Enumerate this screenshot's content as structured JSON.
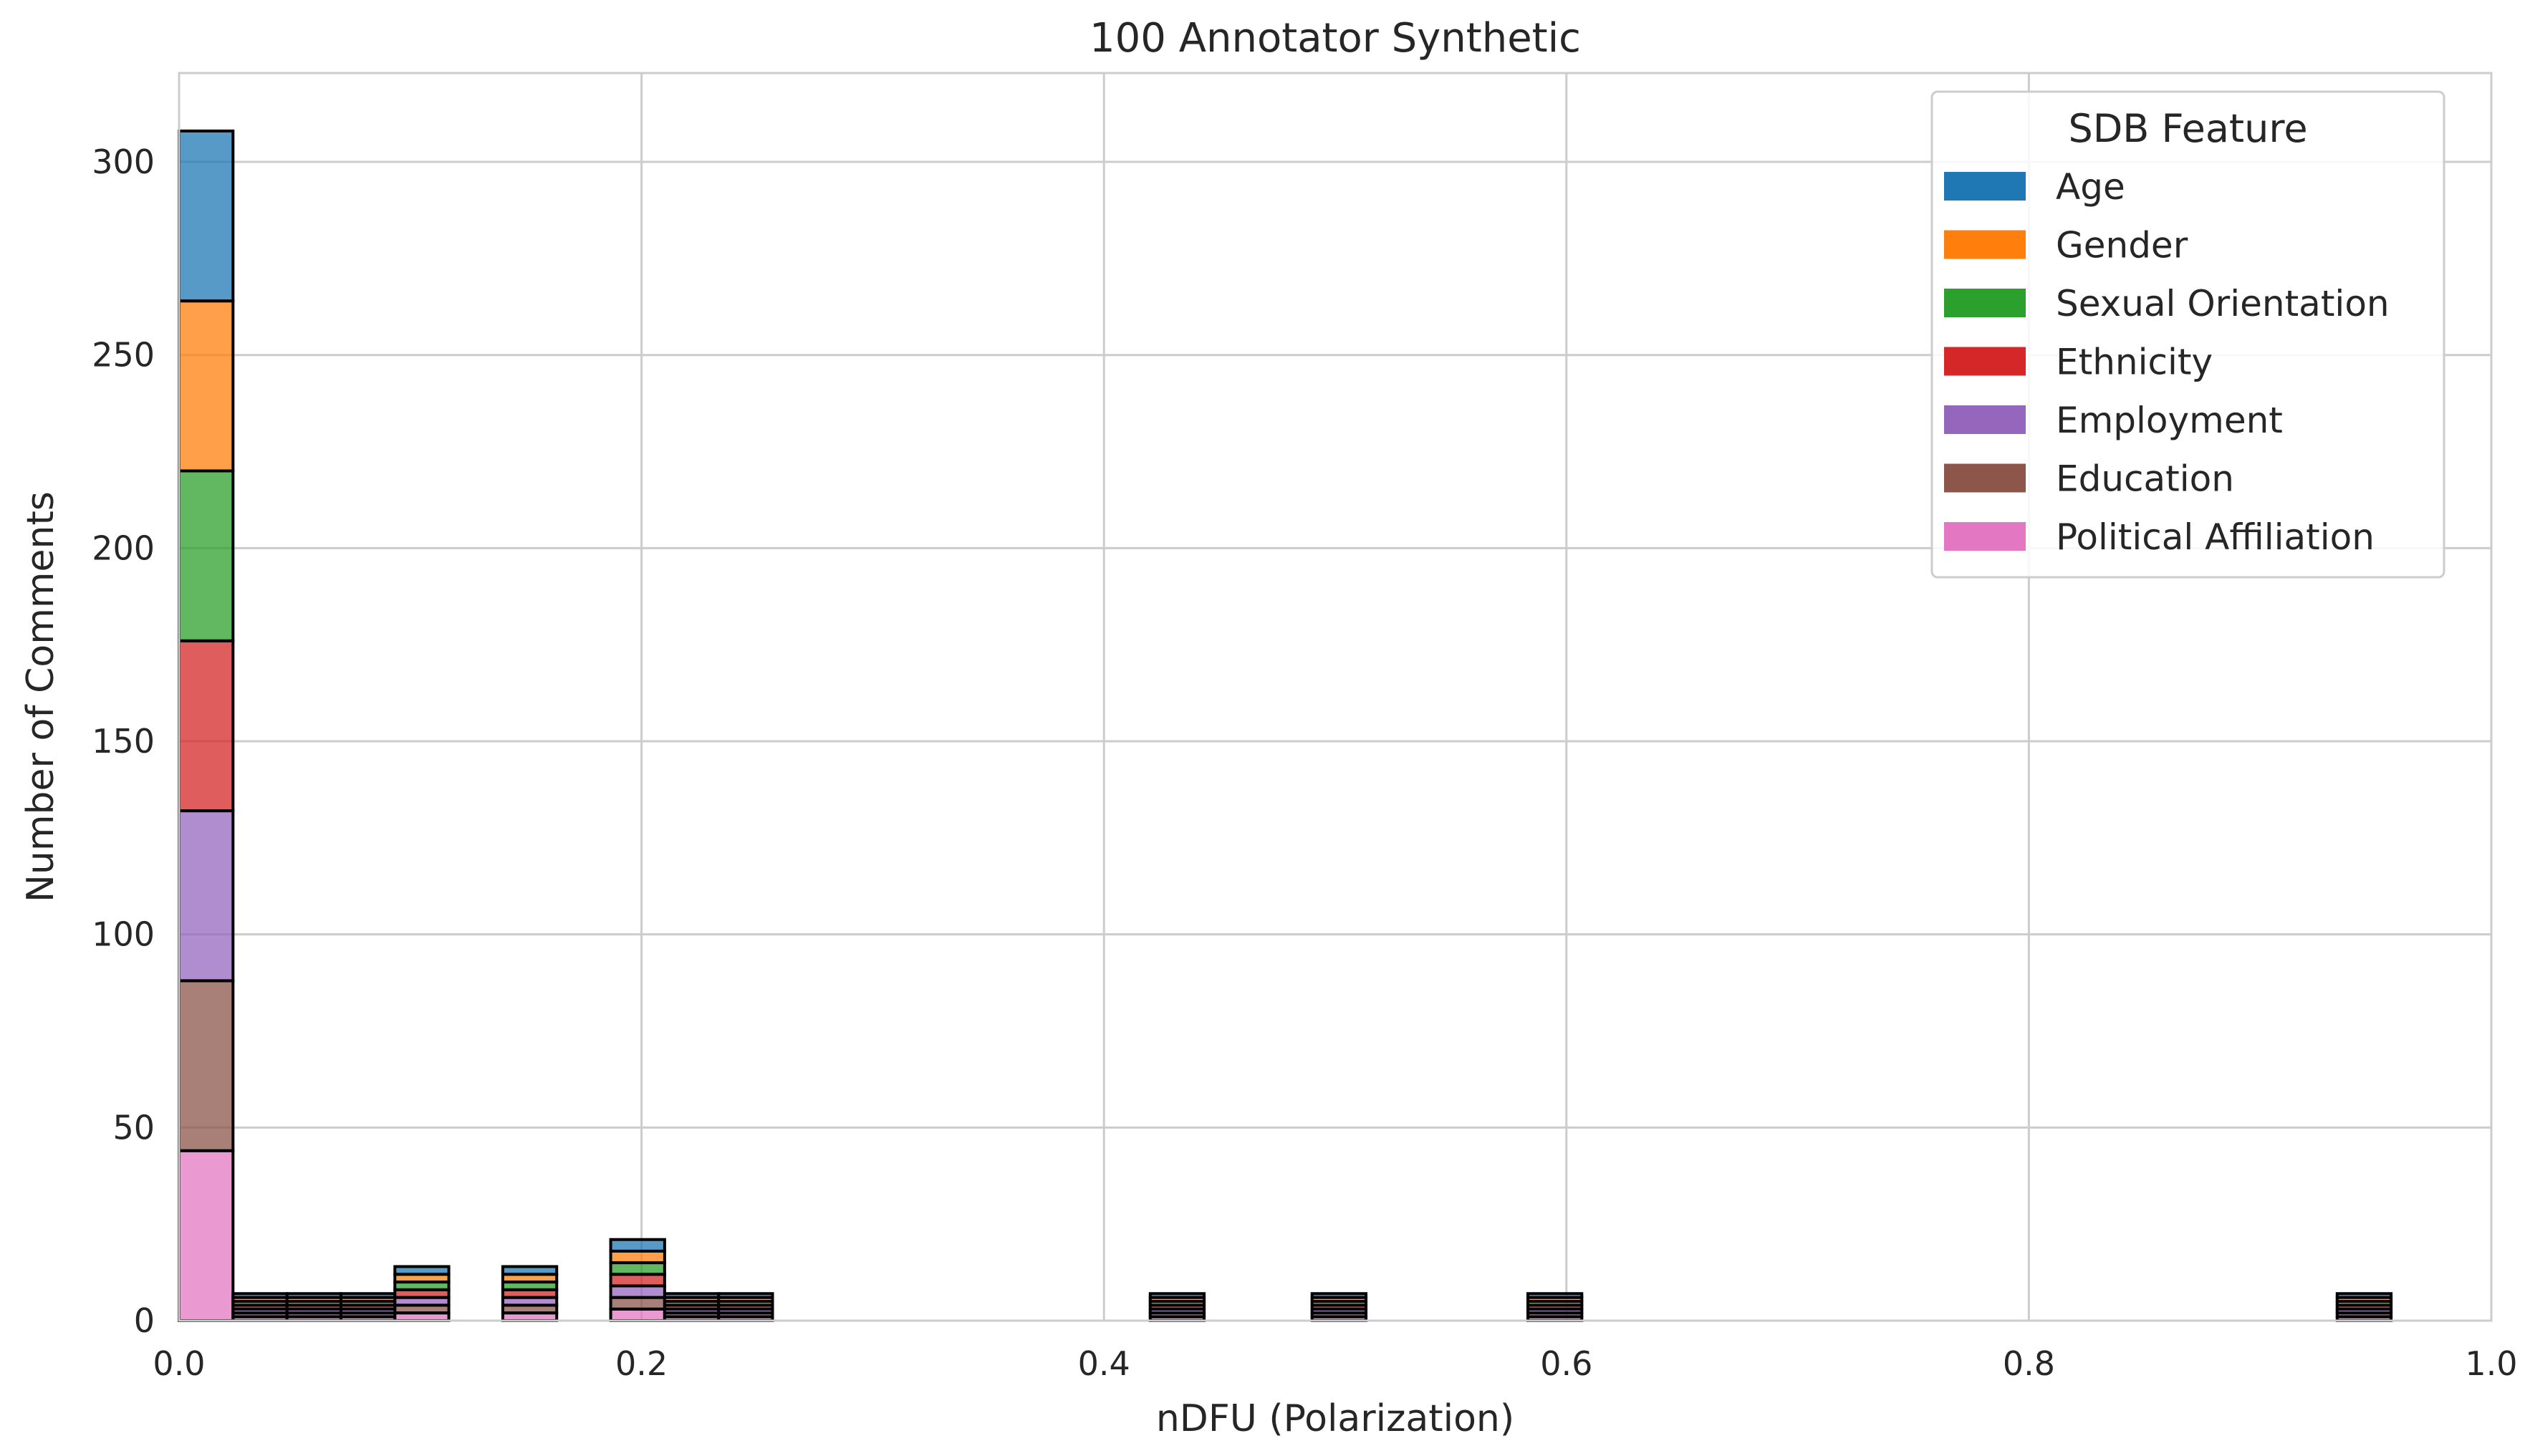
{
  "chart_data": {
    "type": "bar",
    "title": "100 Annotator Synthetic",
    "xlabel": "nDFU (Polarization)",
    "ylabel": "Number of Comments",
    "xlim": [
      0.0,
      1.0
    ],
    "ylim": [
      0,
      323
    ],
    "xticks": [
      "0.0",
      "0.2",
      "0.4",
      "0.6",
      "0.8",
      "1.0"
    ],
    "yticks": [
      "0",
      "50",
      "100",
      "150",
      "200",
      "250",
      "300"
    ],
    "xtick_values": [
      0.0,
      0.2,
      0.4,
      0.6,
      0.8,
      1.0
    ],
    "ytick_values": [
      0,
      50,
      100,
      150,
      200,
      250,
      300
    ],
    "grid": true,
    "stacked": true,
    "legend": {
      "title": "SDB Feature",
      "position": "top-right"
    },
    "bin_width": 0.02333,
    "bin_starts": [
      0.0,
      0.02333,
      0.04667,
      0.07,
      0.09333,
      0.14,
      0.18667,
      0.21,
      0.23333,
      0.42,
      0.49,
      0.58333,
      0.93333
    ],
    "series": [
      {
        "name": "Age",
        "color": "#1f77b4",
        "values": [
          44,
          1,
          1,
          1,
          2,
          2,
          3,
          1,
          1,
          1,
          1,
          1,
          1
        ]
      },
      {
        "name": "Gender",
        "color": "#ff7f0e",
        "values": [
          44,
          1,
          1,
          1,
          2,
          2,
          3,
          1,
          1,
          1,
          1,
          1,
          1
        ]
      },
      {
        "name": "Sexual Orientation",
        "color": "#2ca02c",
        "values": [
          44,
          1,
          1,
          1,
          2,
          2,
          3,
          1,
          1,
          1,
          1,
          1,
          1
        ]
      },
      {
        "name": "Ethnicity",
        "color": "#d62728",
        "values": [
          44,
          1,
          1,
          1,
          2,
          2,
          3,
          1,
          1,
          1,
          1,
          1,
          1
        ]
      },
      {
        "name": "Employment",
        "color": "#9467bd",
        "values": [
          44,
          1,
          1,
          1,
          2,
          2,
          3,
          1,
          1,
          1,
          1,
          1,
          1
        ]
      },
      {
        "name": "Education",
        "color": "#8c564b",
        "values": [
          44,
          1,
          1,
          1,
          2,
          2,
          3,
          1,
          1,
          1,
          1,
          1,
          1
        ]
      },
      {
        "name": "Political Affiliation",
        "color": "#e377c2",
        "values": [
          44,
          1,
          1,
          1,
          2,
          2,
          3,
          1,
          1,
          1,
          1,
          1,
          1
        ]
      }
    ]
  }
}
